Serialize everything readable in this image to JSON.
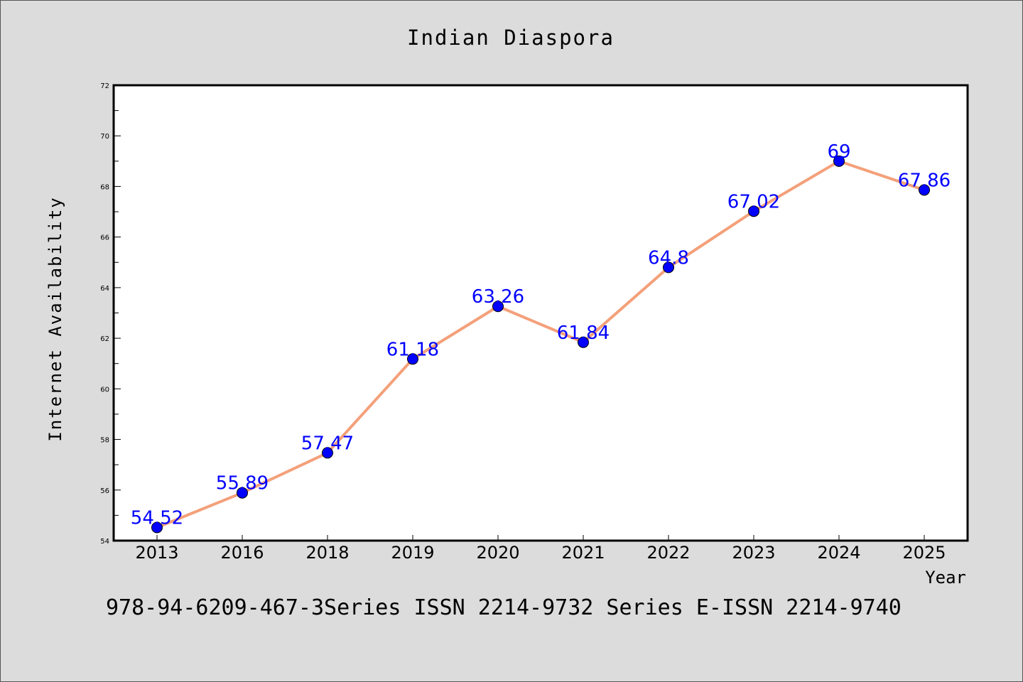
{
  "chart_data": {
    "type": "line",
    "title": "Indian Diaspora",
    "xlabel": "Year",
    "ylabel": "Internet Availability",
    "categories": [
      "2013",
      "2016",
      "2018",
      "2019",
      "2020",
      "2021",
      "2022",
      "2023",
      "2024",
      "2025"
    ],
    "series": [
      {
        "values": [
          54.52,
          55.89,
          57.47,
          61.18,
          63.26,
          61.84,
          64.8,
          67.02,
          69,
          67.86
        ],
        "labels": [
          "54.52",
          "55.89",
          "57.47",
          "61.18",
          "63.26",
          "61.84",
          "64.8",
          "67.02",
          "69",
          "67.86"
        ],
        "line_color": "#f4a07a",
        "marker_color": "#0000ff"
      }
    ],
    "ylim": [
      54,
      72
    ],
    "yticks": [
      "54",
      "56",
      "58",
      "60",
      "62",
      "64",
      "66",
      "68",
      "70",
      "72"
    ],
    "grid": false,
    "legend": "none",
    "data_label_color": "#0000ff"
  },
  "footer": "978-94-6209-467-3Series ISSN 2214-9732 Series E-ISSN 2214-9740",
  "colors": {
    "background": "#dcdcdc",
    "plot_background": "#ffffff",
    "axis": "#000000"
  }
}
